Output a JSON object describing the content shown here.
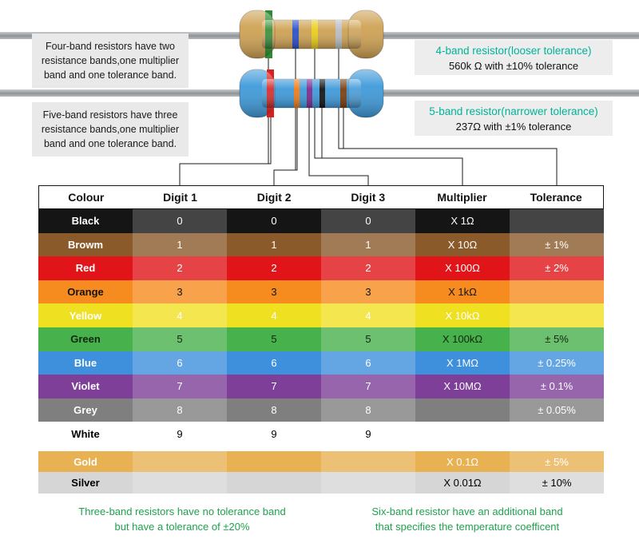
{
  "colors": {
    "teal": "#00b397",
    "footnote_green": "#1ea24d"
  },
  "annotations": {
    "four_band_note": "Four-band resistors have two resistance bands,one multiplier band and one tolerance band.",
    "five_band_note": "Five-band resistors have three resistance bands,one multiplier band and one tolerance band.",
    "four_band_label": {
      "title": "4-band resistor(looser tolerance)",
      "value": "560k Ω with ±10% tolerance"
    },
    "five_band_label": {
      "title": "5-band resistor(narrower tolerance)",
      "value": "237Ω with ±1% tolerance"
    }
  },
  "footnotes": {
    "left_line1": "Three-band resistors have no tolerance band",
    "left_line2": "but have a tolerance of ±20%",
    "right_line1": "Six-band resistor have an additional band",
    "right_line2": "that specifies the temperature coefficent"
  },
  "resistors": {
    "four_band": {
      "body": "#cfa254",
      "bands": [
        "#2e8b31",
        "#2a50c8",
        "#e8cf1a",
        "#b9bdc1"
      ]
    },
    "five_band": {
      "body": "#3f9ada",
      "bands": [
        "#d92020",
        "#ef7d1a",
        "#7b2d8e",
        "#141414",
        "#7a4012"
      ]
    }
  },
  "table": {
    "headers": [
      "Colour",
      "Digit 1",
      "Digit 2",
      "Digit 3",
      "Multiplier",
      "Tolerance"
    ],
    "rows": [
      {
        "colour": "Black",
        "digit1": "0",
        "digit2": "0",
        "digit3": "0",
        "multiplier": "X 1Ω",
        "tolerance": "",
        "bg": "#151515",
        "fg": "#ffffff"
      },
      {
        "colour": "Browm",
        "digit1": "1",
        "digit2": "1",
        "digit3": "1",
        "multiplier": "X 10Ω",
        "tolerance": "± 1%",
        "bg": "#8a5a2b",
        "fg": "#ffffff"
      },
      {
        "colour": "Red",
        "digit1": "2",
        "digit2": "2",
        "digit3": "2",
        "multiplier": "X 100Ω",
        "tolerance": "± 2%",
        "bg": "#e01419",
        "fg": "#ffffff"
      },
      {
        "colour": "Orange",
        "digit1": "3",
        "digit2": "3",
        "digit3": "3",
        "multiplier": "X 1kΩ",
        "tolerance": "",
        "bg": "#f68b1f",
        "fg": "#141410"
      },
      {
        "colour": "Yellow",
        "digit1": "4",
        "digit2": "4",
        "digit3": "4",
        "multiplier": "X 10kΩ",
        "tolerance": "",
        "bg": "#f0e022",
        "fg": "#ffffff"
      },
      {
        "colour": "Green",
        "digit1": "5",
        "digit2": "5",
        "digit3": "5",
        "multiplier": "X 100kΩ",
        "tolerance": "± 5%",
        "bg": "#47b14b",
        "fg": "#10280f"
      },
      {
        "colour": "Blue",
        "digit1": "6",
        "digit2": "6",
        "digit3": "6",
        "multiplier": "X 1MΩ",
        "tolerance": "± 0.25%",
        "bg": "#3e8fdc",
        "fg": "#ffffff"
      },
      {
        "colour": "Violet",
        "digit1": "7",
        "digit2": "7",
        "digit3": "7",
        "multiplier": "X 10MΩ",
        "tolerance": "± 0.1%",
        "bg": "#7d3f98",
        "fg": "#ffffff"
      },
      {
        "colour": "Grey",
        "digit1": "8",
        "digit2": "8",
        "digit3": "8",
        "multiplier": "",
        "tolerance": "± 0.05%",
        "bg": "#7f7f7f",
        "fg": "#ffffff"
      },
      {
        "colour": "White",
        "digit1": "9",
        "digit2": "9",
        "digit3": "9",
        "multiplier": "",
        "tolerance": "",
        "bg": "#ffffff",
        "fg": "#000000"
      },
      {
        "colour": "Gold",
        "digit1": "",
        "digit2": "",
        "digit3": "",
        "multiplier": "X 0.1Ω",
        "tolerance": "± 5%",
        "bg": "#e8b253",
        "fg": "#ffffff"
      },
      {
        "colour": "Silver",
        "digit1": "",
        "digit2": "",
        "digit3": "",
        "multiplier": "X 0.01Ω",
        "tolerance": "± 10%",
        "bg": "#d6d6d6",
        "fg": "#000000"
      }
    ]
  }
}
